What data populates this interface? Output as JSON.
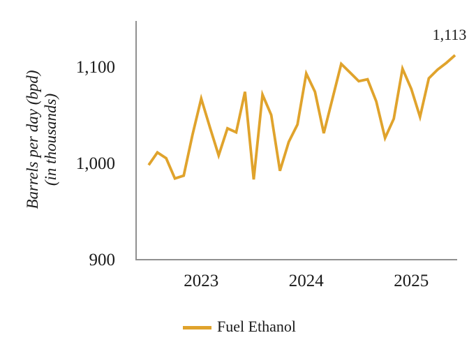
{
  "chart_data": {
    "type": "line",
    "title": "",
    "xlabel": "",
    "ylabel": "Barrels per day (bpd) (in thousands)",
    "ylabel_line1": "Barrels per day (bpd)",
    "ylabel_line2": "(in thousands)",
    "legend_position": "bottom",
    "grid": false,
    "ylim": [
      900,
      1150
    ],
    "y_tick_values": [
      1100,
      1000,
      900
    ],
    "y_tick_labels": [
      "1,100",
      "1,000",
      "900"
    ],
    "x_tick_labels": [
      "2023",
      "2024",
      "2025"
    ],
    "x_tick_indices": [
      6,
      18,
      30
    ],
    "x": [
      "Jul-22",
      "Aug-22",
      "Sep-22",
      "Oct-22",
      "Nov-22",
      "Dec-22",
      "Jan-23",
      "Feb-23",
      "Mar-23",
      "Apr-23",
      "May-23",
      "Jun-23",
      "Jul-23",
      "Aug-23",
      "Sep-23",
      "Oct-23",
      "Nov-23",
      "Dec-23",
      "Jan-24",
      "Feb-24",
      "Mar-24",
      "Apr-24",
      "May-24",
      "Jun-24",
      "Jul-24",
      "Aug-24",
      "Sep-24",
      "Oct-24",
      "Nov-24",
      "Dec-24",
      "Jan-25",
      "Feb-25",
      "Mar-25",
      "Apr-25",
      "May-25",
      "Jun-25"
    ],
    "values": [
      999,
      1012,
      1006,
      985,
      988,
      1030,
      1068,
      1038,
      1009,
      1037,
      1033,
      1075,
      984,
      1072,
      1051,
      993,
      1023,
      1041,
      1094,
      1075,
      1032,
      1068,
      1104,
      1095,
      1086,
      1088,
      1065,
      1027,
      1047,
      1099,
      1078,
      1049,
      1089,
      1098,
      1105,
      1113
    ],
    "series": [
      {
        "name": "Fuel Ethanol",
        "values": [
          999,
          1012,
          1006,
          985,
          988,
          1030,
          1068,
          1038,
          1009,
          1037,
          1033,
          1075,
          984,
          1072,
          1051,
          993,
          1023,
          1041,
          1094,
          1075,
          1032,
          1068,
          1104,
          1095,
          1086,
          1088,
          1065,
          1027,
          1047,
          1099,
          1078,
          1049,
          1089,
          1098,
          1105,
          1113
        ]
      }
    ],
    "annotation": {
      "label": "1,113",
      "point_index": 35
    },
    "line_color": "#E0A32C",
    "axis_color": "#909090"
  },
  "legend": {
    "label": "Fuel Ethanol"
  }
}
